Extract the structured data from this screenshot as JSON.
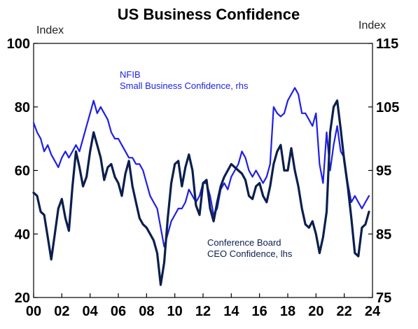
{
  "chart_data": {
    "type": "line",
    "title": "US Business Confidence",
    "left_axis": {
      "label": "Index",
      "ylim": [
        20,
        100
      ],
      "ticks": [
        "100",
        "80",
        "60",
        "40",
        "20"
      ],
      "tick_values": [
        100,
        80,
        60,
        40,
        20
      ]
    },
    "right_axis": {
      "label": "Index",
      "ylim": [
        75,
        115
      ],
      "ticks": [
        "115",
        "105",
        "95",
        "85",
        "75"
      ],
      "tick_values": [
        115,
        105,
        95,
        85,
        75
      ]
    },
    "x_axis": {
      "xlim": [
        2000,
        2024
      ],
      "ticks": [
        "00",
        "02",
        "04",
        "06",
        "08",
        "10",
        "12",
        "14",
        "16",
        "18",
        "20",
        "22",
        "24"
      ],
      "tick_values": [
        2000,
        2002,
        2004,
        2006,
        2008,
        2010,
        2012,
        2014,
        2016,
        2018,
        2020,
        2022,
        2024
      ]
    },
    "grid": false,
    "annotations": {
      "nfib_line1": "NFIB",
      "nfib_line2": "Small Business Confidence, rhs",
      "ceo_line1": "Conference Board",
      "ceo_line2": "CEO Confidence, lhs"
    },
    "series": [
      {
        "name": "NFIB Small Business Confidence, rhs",
        "axis": "right",
        "color": "#1f1fe6",
        "points": [
          [
            2000.0,
            102.5
          ],
          [
            2000.25,
            101
          ],
          [
            2000.5,
            100
          ],
          [
            2000.75,
            98
          ],
          [
            2001.0,
            99
          ],
          [
            2001.25,
            97.5
          ],
          [
            2001.5,
            96.5
          ],
          [
            2001.75,
            95.5
          ],
          [
            2002.0,
            97
          ],
          [
            2002.25,
            98
          ],
          [
            2002.5,
            97
          ],
          [
            2002.75,
            98
          ],
          [
            2003.0,
            99
          ],
          [
            2003.25,
            98
          ],
          [
            2003.5,
            100
          ],
          [
            2003.75,
            102
          ],
          [
            2004.0,
            104
          ],
          [
            2004.25,
            106
          ],
          [
            2004.5,
            104
          ],
          [
            2004.75,
            105
          ],
          [
            2005.0,
            104
          ],
          [
            2005.25,
            103
          ],
          [
            2005.5,
            101
          ],
          [
            2005.75,
            100
          ],
          [
            2006.0,
            100
          ],
          [
            2006.25,
            99
          ],
          [
            2006.5,
            98
          ],
          [
            2006.75,
            97
          ],
          [
            2007.0,
            97
          ],
          [
            2007.25,
            96
          ],
          [
            2007.5,
            96
          ],
          [
            2007.75,
            95
          ],
          [
            2008.0,
            93
          ],
          [
            2008.25,
            91
          ],
          [
            2008.5,
            90
          ],
          [
            2008.75,
            89
          ],
          [
            2009.0,
            86
          ],
          [
            2009.25,
            83
          ],
          [
            2009.5,
            85
          ],
          [
            2009.75,
            87
          ],
          [
            2010.0,
            88
          ],
          [
            2010.25,
            89
          ],
          [
            2010.5,
            89
          ],
          [
            2010.75,
            90
          ],
          [
            2011.0,
            92
          ],
          [
            2011.25,
            91
          ],
          [
            2011.5,
            90
          ],
          [
            2011.75,
            91
          ],
          [
            2012.0,
            93
          ],
          [
            2012.25,
            93
          ],
          [
            2012.5,
            91
          ],
          [
            2012.75,
            88
          ],
          [
            2013.0,
            89
          ],
          [
            2013.25,
            92
          ],
          [
            2013.5,
            93
          ],
          [
            2013.75,
            92
          ],
          [
            2014.0,
            94
          ],
          [
            2014.25,
            95
          ],
          [
            2014.5,
            96
          ],
          [
            2014.75,
            98
          ],
          [
            2015.0,
            97
          ],
          [
            2015.25,
            95
          ],
          [
            2015.5,
            94
          ],
          [
            2015.75,
            95
          ],
          [
            2016.0,
            94
          ],
          [
            2016.25,
            93
          ],
          [
            2016.5,
            94
          ],
          [
            2016.75,
            96
          ],
          [
            2017.0,
            105
          ],
          [
            2017.25,
            104
          ],
          [
            2017.5,
            103.5
          ],
          [
            2017.75,
            104
          ],
          [
            2018.0,
            106
          ],
          [
            2018.25,
            107
          ],
          [
            2018.5,
            108
          ],
          [
            2018.75,
            107
          ],
          [
            2019.0,
            104
          ],
          [
            2019.25,
            104
          ],
          [
            2019.5,
            103
          ],
          [
            2019.75,
            102
          ],
          [
            2020.0,
            104
          ],
          [
            2020.25,
            96
          ],
          [
            2020.5,
            93
          ],
          [
            2020.75,
            101
          ],
          [
            2021.0,
            95
          ],
          [
            2021.25,
            99
          ],
          [
            2021.5,
            102
          ],
          [
            2021.75,
            98
          ],
          [
            2022.0,
            97
          ],
          [
            2022.25,
            93
          ],
          [
            2022.5,
            90
          ],
          [
            2022.75,
            91
          ],
          [
            2023.0,
            90
          ],
          [
            2023.25,
            89
          ],
          [
            2023.5,
            90
          ],
          [
            2023.75,
            91
          ]
        ]
      },
      {
        "name": "Conference Board CEO Confidence, lhs",
        "axis": "left",
        "color": "#0b1f4d",
        "points": [
          [
            2000.0,
            53
          ],
          [
            2000.25,
            52
          ],
          [
            2000.5,
            47
          ],
          [
            2000.75,
            46
          ],
          [
            2001.0,
            39
          ],
          [
            2001.25,
            32
          ],
          [
            2001.5,
            40
          ],
          [
            2001.75,
            48
          ],
          [
            2002.0,
            51
          ],
          [
            2002.25,
            45
          ],
          [
            2002.5,
            41
          ],
          [
            2002.75,
            55
          ],
          [
            2003.0,
            66
          ],
          [
            2003.25,
            61
          ],
          [
            2003.5,
            55
          ],
          [
            2003.75,
            58
          ],
          [
            2004.0,
            66
          ],
          [
            2004.25,
            72
          ],
          [
            2004.5,
            68
          ],
          [
            2004.75,
            64
          ],
          [
            2005.0,
            57
          ],
          [
            2005.25,
            61
          ],
          [
            2005.5,
            62
          ],
          [
            2005.75,
            58
          ],
          [
            2006.0,
            56
          ],
          [
            2006.25,
            52
          ],
          [
            2006.5,
            59
          ],
          [
            2006.75,
            63
          ],
          [
            2007.0,
            55
          ],
          [
            2007.25,
            50
          ],
          [
            2007.5,
            45
          ],
          [
            2007.75,
            43
          ],
          [
            2008.0,
            42
          ],
          [
            2008.25,
            40
          ],
          [
            2008.5,
            38
          ],
          [
            2008.75,
            34
          ],
          [
            2009.0,
            24
          ],
          [
            2009.25,
            31
          ],
          [
            2009.5,
            45
          ],
          [
            2009.75,
            56
          ],
          [
            2010.0,
            62
          ],
          [
            2010.25,
            63
          ],
          [
            2010.5,
            55
          ],
          [
            2010.75,
            61
          ],
          [
            2011.0,
            65
          ],
          [
            2011.25,
            60
          ],
          [
            2011.5,
            49
          ],
          [
            2011.75,
            46
          ],
          [
            2012.0,
            56
          ],
          [
            2012.25,
            57
          ],
          [
            2012.5,
            48
          ],
          [
            2012.75,
            44
          ],
          [
            2013.0,
            50
          ],
          [
            2013.25,
            55
          ],
          [
            2013.5,
            58
          ],
          [
            2013.75,
            60
          ],
          [
            2014.0,
            62
          ],
          [
            2014.25,
            61
          ],
          [
            2014.5,
            60
          ],
          [
            2014.75,
            59
          ],
          [
            2015.0,
            57
          ],
          [
            2015.25,
            52
          ],
          [
            2015.5,
            51
          ],
          [
            2015.75,
            55
          ],
          [
            2016.0,
            56
          ],
          [
            2016.25,
            52
          ],
          [
            2016.5,
            50
          ],
          [
            2016.75,
            55
          ],
          [
            2017.0,
            62
          ],
          [
            2017.25,
            66
          ],
          [
            2017.5,
            68
          ],
          [
            2017.75,
            60
          ],
          [
            2018.0,
            60
          ],
          [
            2018.25,
            67
          ],
          [
            2018.5,
            60
          ],
          [
            2018.75,
            55
          ],
          [
            2019.0,
            48
          ],
          [
            2019.25,
            43
          ],
          [
            2019.5,
            42
          ],
          [
            2019.75,
            44
          ],
          [
            2020.0,
            40
          ],
          [
            2020.25,
            34
          ],
          [
            2020.5,
            39
          ],
          [
            2020.75,
            47
          ],
          [
            2021.0,
            72
          ],
          [
            2021.25,
            80
          ],
          [
            2021.5,
            82
          ],
          [
            2021.75,
            73
          ],
          [
            2022.0,
            63
          ],
          [
            2022.25,
            55
          ],
          [
            2022.5,
            45
          ],
          [
            2022.75,
            34
          ],
          [
            2023.0,
            33
          ],
          [
            2023.25,
            42
          ],
          [
            2023.5,
            43
          ],
          [
            2023.75,
            47
          ]
        ]
      }
    ]
  }
}
